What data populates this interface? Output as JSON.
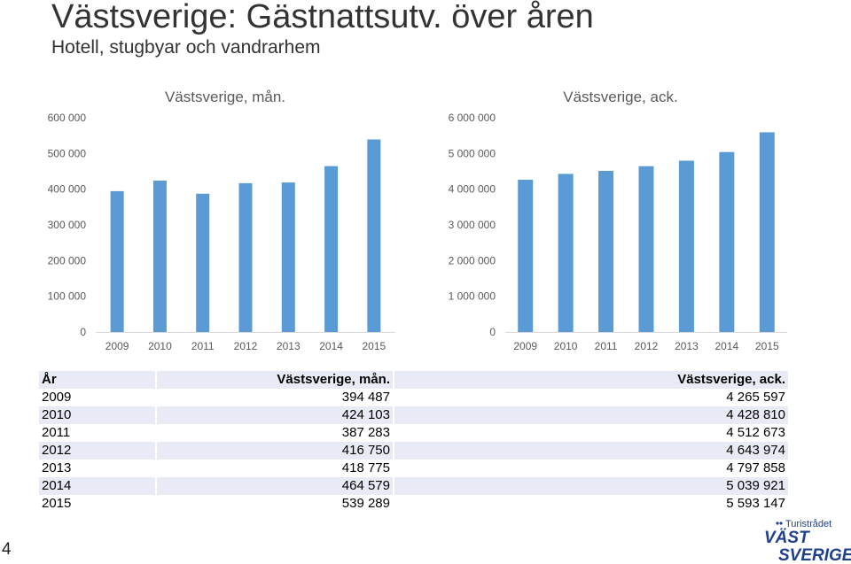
{
  "slide": {
    "title": "Västsverige: Gästnattsutv. över åren",
    "subtitle": "Hotell, stugbyar och vandrarhem",
    "page_number": "4"
  },
  "chart_data": [
    {
      "type": "bar",
      "title": "Västsverige, mån.",
      "categories": [
        "2009",
        "2010",
        "2011",
        "2012",
        "2013",
        "2014",
        "2015"
      ],
      "values": [
        394487,
        424103,
        387283,
        416750,
        418775,
        464579,
        539289
      ],
      "ylim": [
        0,
        600000
      ],
      "yticks": [
        "0",
        "100 000",
        "200 000",
        "300 000",
        "400 000",
        "500 000",
        "600 000"
      ],
      "color": "#5b9bd5",
      "grid": false
    },
    {
      "type": "bar",
      "title": "Västsverige, ack.",
      "categories": [
        "2009",
        "2010",
        "2011",
        "2012",
        "2013",
        "2014",
        "2015"
      ],
      "values": [
        4265597,
        4428810,
        4512673,
        4643974,
        4797858,
        5039921,
        5593147
      ],
      "ylim": [
        0,
        6000000
      ],
      "yticks": [
        "0",
        "1 000 000",
        "2 000 000",
        "3 000 000",
        "4 000 000",
        "5 000 000",
        "6 000 000"
      ],
      "color": "#5b9bd5",
      "grid": false
    }
  ],
  "table": {
    "headers": [
      "År",
      "Västsverige, mån.",
      "Västsverige, ack."
    ],
    "rows": [
      [
        "2009",
        "394 487",
        "4 265 597"
      ],
      [
        "2010",
        "424 103",
        "4 428 810"
      ],
      [
        "2011",
        "387 283",
        "4 512 673"
      ],
      [
        "2012",
        "416 750",
        "4 643 974"
      ],
      [
        "2013",
        "418 775",
        "4 797 858"
      ],
      [
        "2014",
        "464 579",
        "5 039 921"
      ],
      [
        "2015",
        "539 289",
        "5 593 147"
      ]
    ]
  },
  "logo": {
    "line1": "Turistrådet",
    "line2": "VÄST",
    "line3": "SVERIGE",
    "color": "#1f3f8f"
  }
}
